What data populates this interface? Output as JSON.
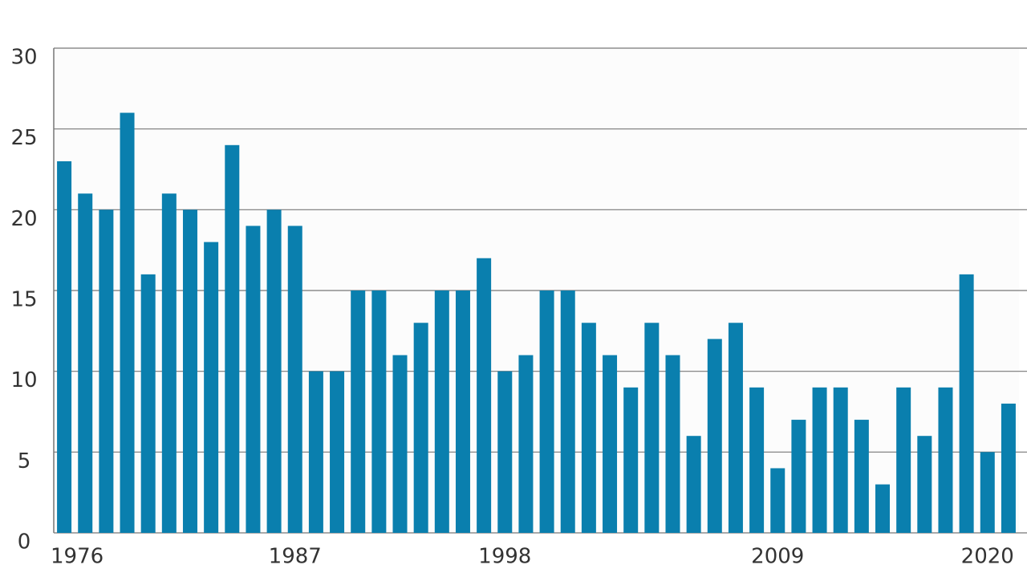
{
  "chart_data": {
    "type": "bar",
    "categories": [
      "1976",
      null,
      null,
      null,
      null,
      null,
      null,
      null,
      null,
      null,
      null,
      "1987",
      null,
      null,
      null,
      null,
      null,
      null,
      null,
      null,
      null,
      "1998",
      null,
      null,
      null,
      null,
      null,
      null,
      null,
      null,
      null,
      null,
      null,
      null,
      "2009",
      null,
      null,
      null,
      null,
      null,
      null,
      null,
      null,
      null,
      "2020",
      null
    ],
    "values": [
      23,
      21,
      20,
      26,
      16,
      21,
      20,
      18,
      24,
      19,
      20,
      19,
      10,
      10,
      15,
      15,
      11,
      13,
      15,
      15,
      17,
      10,
      11,
      15,
      15,
      13,
      11,
      9,
      13,
      11,
      6,
      12,
      13,
      9,
      4,
      7,
      9,
      9,
      7,
      3,
      9,
      6,
      9,
      16,
      5,
      8
    ],
    "color": "#0a7fae",
    "ylim": [
      0,
      30
    ],
    "yticks": [
      0,
      5,
      10,
      15,
      20,
      25,
      30
    ],
    "grid": true
  }
}
